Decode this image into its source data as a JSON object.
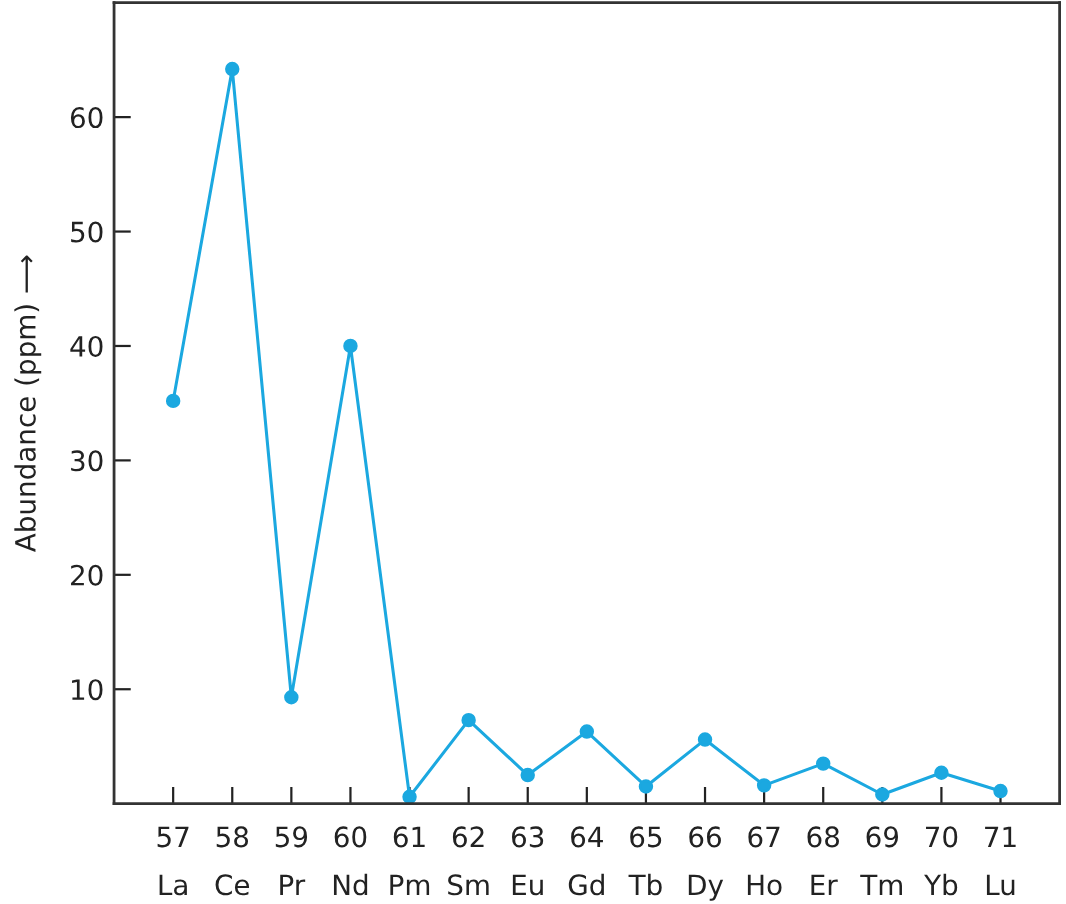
{
  "chart_data": {
    "type": "line",
    "ylabel": "Abundance (ppm) ⟶",
    "categories": [
      "57\nLa",
      "58\nCe",
      "59\nPr",
      "60\nNd",
      "61\nPm",
      "62\nSm",
      "63\nEu",
      "64\nGd",
      "65\nTb",
      "66\nDy",
      "67\nHo",
      "68\nEr",
      "69\nTm",
      "70\nYb",
      "71\nLu"
    ],
    "series": [
      {
        "color": "#1ba8e0",
        "values": [
          35.2,
          64.2,
          9.3,
          40.0,
          0.6,
          7.3,
          2.5,
          6.3,
          1.5,
          5.6,
          1.6,
          3.5,
          0.8,
          2.7,
          1.1
        ]
      }
    ],
    "ylim": [
      0,
      70
    ],
    "yticks": [
      10,
      20,
      30,
      40,
      50,
      60
    ],
    "marker": "circle",
    "line_style": "solid",
    "grid": false,
    "legend": false
  }
}
